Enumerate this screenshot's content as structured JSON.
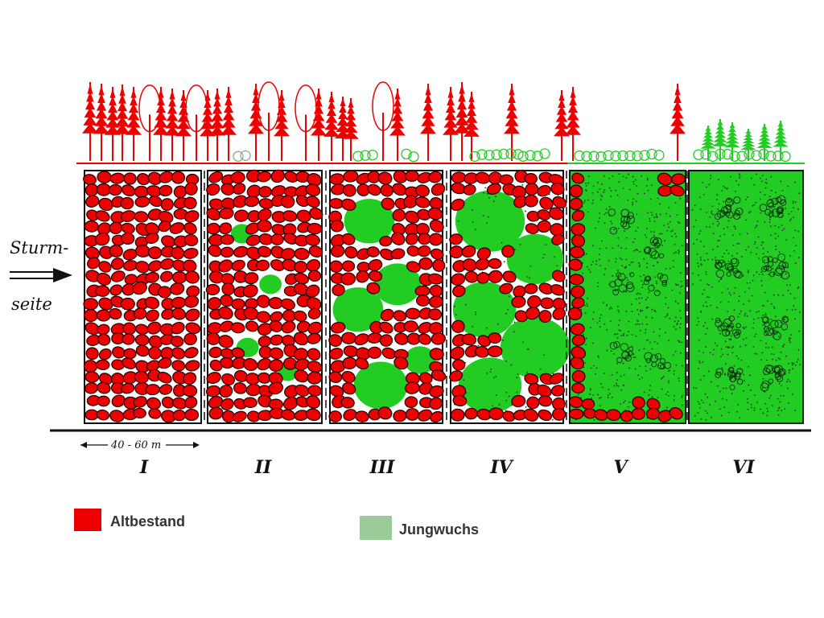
{
  "wind": {
    "line1": "Sturm-",
    "line2": "seite"
  },
  "scale": {
    "label": "40 - 60 m"
  },
  "stages": [
    {
      "numeral": "I",
      "old_share": 1.0
    },
    {
      "numeral": "II",
      "old_share": 0.9
    },
    {
      "numeral": "III",
      "old_share": 0.65
    },
    {
      "numeral": "IV",
      "old_share": 0.45
    },
    {
      "numeral": "V",
      "old_share": 0.15
    },
    {
      "numeral": "VI",
      "old_share": 0.0
    }
  ],
  "legend": [
    {
      "label": "Altbestand",
      "color": "#ee0000"
    },
    {
      "label": "Jungwuchs",
      "color": "#99cc99"
    }
  ],
  "colors": {
    "old": "#ee0000",
    "young": "#22cc22",
    "young_dark": "#14a814",
    "ink": "#111111"
  }
}
